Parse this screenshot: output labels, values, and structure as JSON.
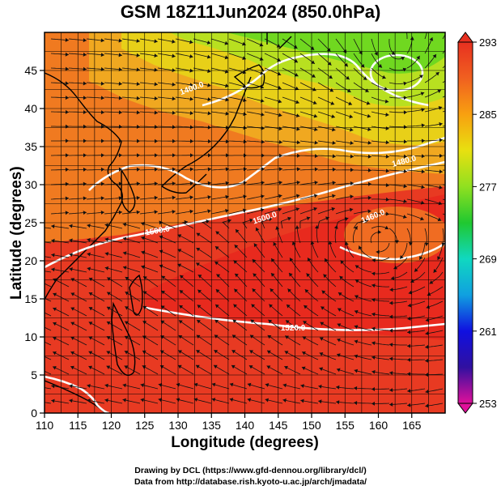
{
  "title": "GSM 18Z11Jun2024 (850.0hPa)",
  "axes": {
    "xlabel": "Longitude (degrees)",
    "ylabel": "Latitude  (degrees)",
    "xticks": [
      "110",
      "115",
      "120",
      "125",
      "130",
      "135",
      "140",
      "145",
      "150",
      "155",
      "160",
      "165"
    ],
    "yticks": [
      "0",
      "5",
      "10",
      "15",
      "20",
      "25",
      "30",
      "35",
      "40",
      "45"
    ],
    "xlim": [
      110,
      170
    ],
    "ylim": [
      0,
      50
    ]
  },
  "colorbar": {
    "labels": [
      "293",
      "285",
      "277",
      "269",
      "261",
      "253"
    ],
    "range": [
      253,
      293
    ],
    "colors": [
      "#e0109a",
      "#3010a0",
      "#1010e0",
      "#10a0e0",
      "#10d8c0",
      "#20c830",
      "#90e020",
      "#e8e010",
      "#f8a010",
      "#f06020",
      "#e83020"
    ]
  },
  "contours": {
    "labels": [
      "1400.0",
      "1480.0",
      "1500.0",
      "1500.0",
      "1460.0",
      "1520.0"
    ],
    "color": "#ffffff"
  },
  "credits": {
    "line1": "Drawing by DCL (https://www.gfd-dennou.org/library/dcl/)",
    "line2": "Data from http://database.rish.kyoto-u.ac.jp/arch/jmadata/"
  }
}
